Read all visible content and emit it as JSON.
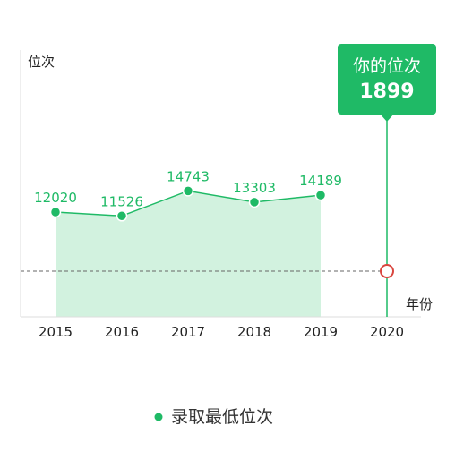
{
  "chart_data": {
    "type": "area",
    "ylabel": "位次",
    "xlabel": "年份",
    "x_ticks": [
      "2015",
      "2016",
      "2017",
      "2018",
      "2019",
      "2020"
    ],
    "series": [
      {
        "name": "录取最低位次",
        "x": [
          "2015",
          "2016",
          "2017",
          "2018",
          "2019"
        ],
        "values": [
          12020,
          11526,
          14743,
          13303,
          14189
        ]
      }
    ],
    "your_rank": {
      "label": "你的位次",
      "x": "2020",
      "value": 1899
    },
    "legend_position": "bottom-center",
    "grid": false
  },
  "colors": {
    "line": "#1fba66",
    "area": "#d2f2df",
    "callout": "#1fba66",
    "marker": "#d9463f",
    "reference_line": "#666666"
  }
}
